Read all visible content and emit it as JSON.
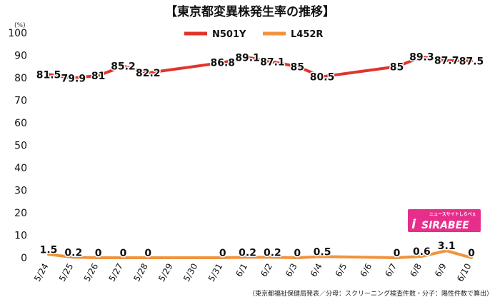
{
  "title": "【東京都変異株発生率の推移】",
  "unit": "(%)",
  "footnote": "（東京都福祉保健局発表／分母：スクリーニング検査件数・分子：陽性件数で算出）",
  "logo": {
    "text": "SIRABEE",
    "subtext": "ニュースサイトしらべぇ"
  },
  "colors": {
    "N501Y": "#e0352b",
    "L452R": "#f0933e",
    "logo": "#e62e8b"
  },
  "chart_data": {
    "type": "line",
    "categories": [
      "5/24",
      "5/25",
      "5/26",
      "5/27",
      "5/28",
      "5/29",
      "5/30",
      "5/31",
      "6/1",
      "6/2",
      "6/3",
      "6/4",
      "6/5",
      "6/6",
      "6/7",
      "6/8",
      "6/9",
      "6/10"
    ],
    "ylim": [
      0,
      100
    ],
    "yticks": [
      0,
      10,
      20,
      30,
      40,
      50,
      60,
      70,
      80,
      90,
      100
    ],
    "legend_position": "top",
    "grid": false,
    "series": [
      {
        "name": "N501Y",
        "values": [
          81.5,
          79.9,
          81,
          85.2,
          82.2,
          null,
          null,
          86.8,
          89.1,
          87.1,
          85,
          80.5,
          null,
          null,
          85,
          89.3,
          87.7,
          87.5
        ],
        "labels": [
          "81.5",
          "79.9",
          "81",
          "85.2",
          "82.2",
          null,
          null,
          "86.8",
          "89.1",
          "87.1",
          "85",
          "80.5",
          null,
          null,
          "85",
          "89.3",
          "87.7",
          "87.5"
        ]
      },
      {
        "name": "L452R",
        "values": [
          1.5,
          0.2,
          0,
          0,
          0,
          null,
          null,
          0,
          0.2,
          0.2,
          0,
          0.5,
          null,
          null,
          0,
          0.6,
          3.1,
          0
        ],
        "labels": [
          "1.5",
          "0.2",
          "0",
          "0",
          "0",
          null,
          null,
          "0",
          "0.2",
          "0.2",
          "0",
          "0.5",
          null,
          null,
          "0",
          "0.6",
          "3.1",
          "0"
        ]
      }
    ]
  }
}
